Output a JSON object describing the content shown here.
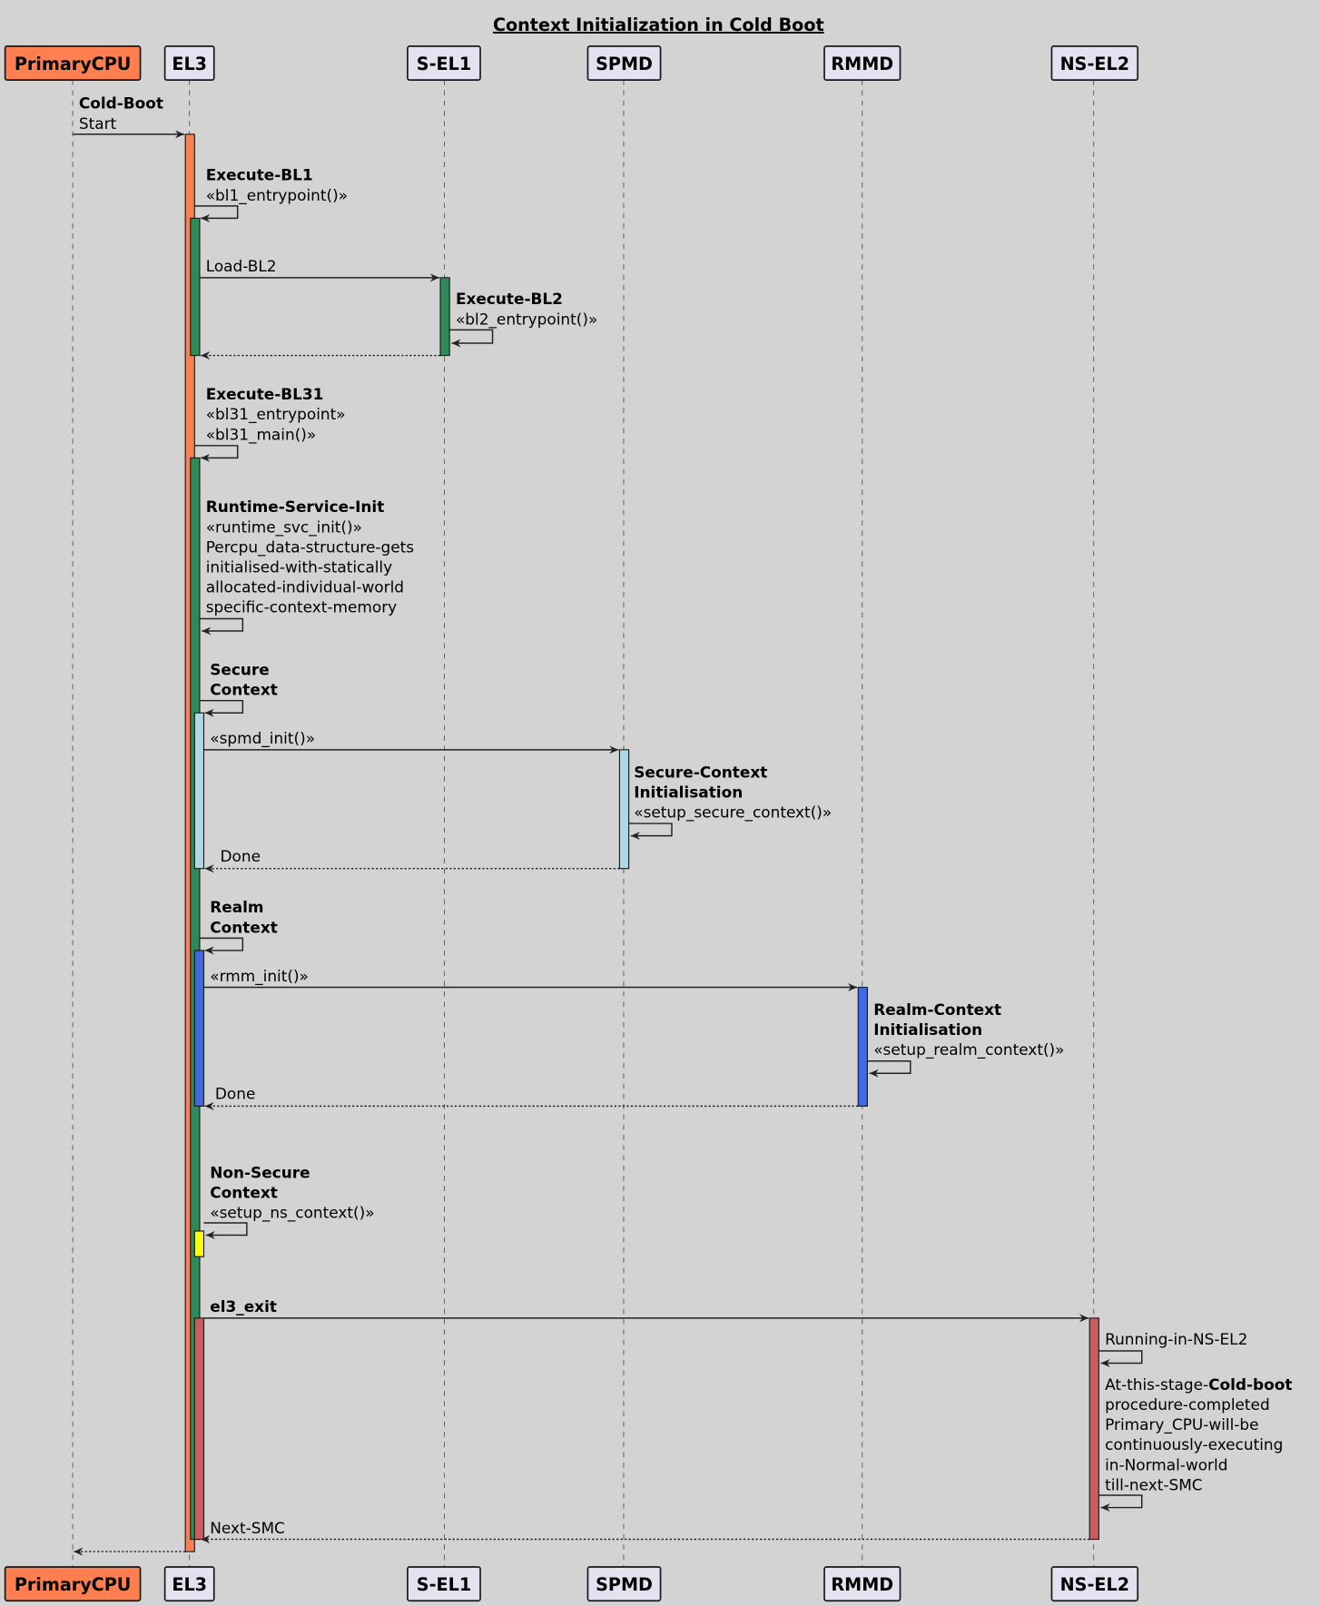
{
  "title": "Context Initialization in Cold Boot",
  "colors": {
    "background": "#D3D3D3",
    "participant_fill": "#E2E2F0",
    "primary_cpu": "#FF7F50",
    "el3_boot": "#FF7F50",
    "bl_execution": "#2E8B57",
    "secure_context": "#ADD8E6",
    "realm_context": "#4169E1",
    "ns_context": "#FFFF00",
    "ns_el2": "#CD5C5C"
  },
  "participants": [
    {
      "name": "PrimaryCPU",
      "fill": "#FF7F50"
    },
    {
      "name": "EL3",
      "fill": "#E2E2F0"
    },
    {
      "name": "S-EL1",
      "fill": "#E2E2F0"
    },
    {
      "name": "SPMD",
      "fill": "#E2E2F0"
    },
    {
      "name": "RMMD",
      "fill": "#E2E2F0"
    },
    {
      "name": "NS-EL2",
      "fill": "#E2E2F0"
    }
  ],
  "messages": [
    {
      "from": "PrimaryCPU",
      "to": "EL3",
      "style": "solid",
      "lines": [
        [
          {
            "t": "Cold-Boot",
            "b": true
          }
        ],
        [
          {
            "t": "Start"
          }
        ]
      ]
    },
    {
      "from": "EL3",
      "to": "EL3",
      "style": "solid",
      "lines": [
        [
          {
            "t": "Execute-BL1",
            "b": true
          }
        ],
        [
          {
            "t": "«bl1_entrypoint()»"
          }
        ]
      ]
    },
    {
      "from": "EL3",
      "to": "S-EL1",
      "style": "solid",
      "lines": [
        [
          {
            "t": "Load-BL2"
          }
        ]
      ]
    },
    {
      "from": "S-EL1",
      "to": "S-EL1",
      "style": "solid",
      "lines": [
        [
          {
            "t": "Execute-BL2",
            "b": true
          }
        ],
        [
          {
            "t": "«bl2_entrypoint()»"
          }
        ]
      ]
    },
    {
      "from": "S-EL1",
      "to": "EL3",
      "style": "dotted",
      "lines": []
    },
    {
      "from": "EL3",
      "to": "EL3",
      "style": "solid",
      "lines": [
        [
          {
            "t": "Execute-BL31",
            "b": true
          }
        ],
        [
          {
            "t": "«bl31_entrypoint»"
          }
        ],
        [
          {
            "t": "«bl31_main()»"
          }
        ]
      ]
    },
    {
      "from": "EL3",
      "to": "EL3",
      "style": "solid",
      "lines": [
        [
          {
            "t": "Runtime-Service-Init",
            "b": true
          }
        ],
        [
          {
            "t": "«runtime_svc_init()»"
          }
        ],
        [
          {
            "t": "Percpu_data-structure-gets"
          }
        ],
        [
          {
            "t": "initialised-with-statically"
          }
        ],
        [
          {
            "t": "allocated-individual-world"
          }
        ],
        [
          {
            "t": "specific-context-memory"
          }
        ]
      ]
    },
    {
      "from": "EL3",
      "to": "EL3",
      "style": "solid",
      "lines": [
        [
          {
            "t": "Secure",
            "b": true
          }
        ],
        [
          {
            "t": "Context",
            "b": true
          }
        ]
      ]
    },
    {
      "from": "EL3",
      "to": "SPMD",
      "style": "solid",
      "lines": [
        [
          {
            "t": "«spmd_init()»"
          }
        ]
      ]
    },
    {
      "from": "SPMD",
      "to": "SPMD",
      "style": "solid",
      "lines": [
        [
          {
            "t": "Secure-Context",
            "b": true
          }
        ],
        [
          {
            "t": "Initialisation",
            "b": true
          }
        ],
        [
          {
            "t": "«setup_secure_context()»"
          }
        ]
      ]
    },
    {
      "from": "SPMD",
      "to": "EL3",
      "style": "dotted",
      "lines": [
        [
          {
            "t": "Done"
          }
        ]
      ]
    },
    {
      "from": "EL3",
      "to": "EL3",
      "style": "solid",
      "lines": [
        [
          {
            "t": "Realm",
            "b": true
          }
        ],
        [
          {
            "t": "Context",
            "b": true
          }
        ]
      ]
    },
    {
      "from": "EL3",
      "to": "RMMD",
      "style": "solid",
      "lines": [
        [
          {
            "t": "«rmm_init()»"
          }
        ]
      ]
    },
    {
      "from": "RMMD",
      "to": "RMMD",
      "style": "solid",
      "lines": [
        [
          {
            "t": "Realm-Context",
            "b": true
          }
        ],
        [
          {
            "t": "Initialisation",
            "b": true
          }
        ],
        [
          {
            "t": "«setup_realm_context()»"
          }
        ]
      ]
    },
    {
      "from": "RMMD",
      "to": "EL3",
      "style": "dotted",
      "lines": [
        [
          {
            "t": "Done"
          }
        ]
      ]
    },
    {
      "from": "EL3",
      "to": "EL3",
      "style": "solid",
      "lines": [
        [
          {
            "t": "Non-Secure",
            "b": true
          }
        ],
        [
          {
            "t": "Context",
            "b": true
          }
        ],
        [
          {
            "t": "«setup_ns_context()»"
          }
        ]
      ]
    },
    {
      "from": "EL3",
      "to": "NS-EL2",
      "style": "solid",
      "lines": [
        [
          {
            "t": "el3_exit",
            "b": true
          }
        ]
      ]
    },
    {
      "from": "NS-EL2",
      "to": "NS-EL2",
      "style": "solid",
      "lines": [
        [
          {
            "t": "Running-in-NS-EL2"
          }
        ]
      ]
    },
    {
      "from": "NS-EL2",
      "to": "NS-EL2",
      "style": "solid",
      "lines": [
        [
          {
            "t": "At-this-stage-"
          },
          {
            "t": "Cold-boot",
            "b": true
          }
        ],
        [
          {
            "t": "procedure-completed"
          }
        ],
        [
          {
            "t": "Primary_CPU-will-be"
          }
        ],
        [
          {
            "t": "continuously-executing"
          }
        ],
        [
          {
            "t": "in-Normal-world"
          }
        ],
        [
          {
            "t": "till-next-SMC"
          }
        ]
      ]
    },
    {
      "from": "NS-EL2",
      "to": "EL3",
      "style": "dotted",
      "lines": [
        [
          {
            "t": "Next-SMC"
          }
        ]
      ]
    },
    {
      "from": "EL3",
      "to": "PrimaryCPU",
      "style": "dotted",
      "lines": []
    }
  ]
}
